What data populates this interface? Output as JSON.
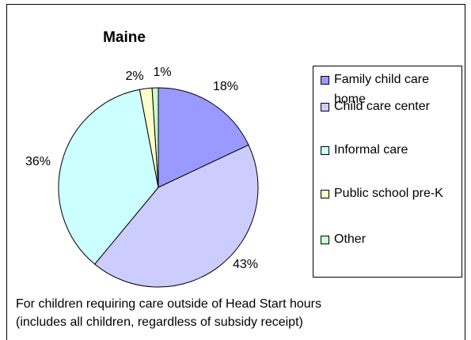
{
  "chart_data": {
    "type": "pie",
    "title": "Maine",
    "categories": [
      "Family child care home",
      "Child care center",
      "Informal care",
      "Public school pre-K",
      "Other"
    ],
    "values": [
      18,
      43,
      36,
      2,
      1
    ],
    "value_labels": [
      "18%",
      "43%",
      "36%",
      "2%",
      "1%"
    ],
    "colors": [
      "#9999ff",
      "#ccccff",
      "#ccffff",
      "#ffffcc",
      "#ccffcc"
    ],
    "annotations": [
      "For children requiring care outside of Head Start hours",
      "(includes all children, regardless of subsidy receipt)"
    ],
    "legend": "right"
  }
}
